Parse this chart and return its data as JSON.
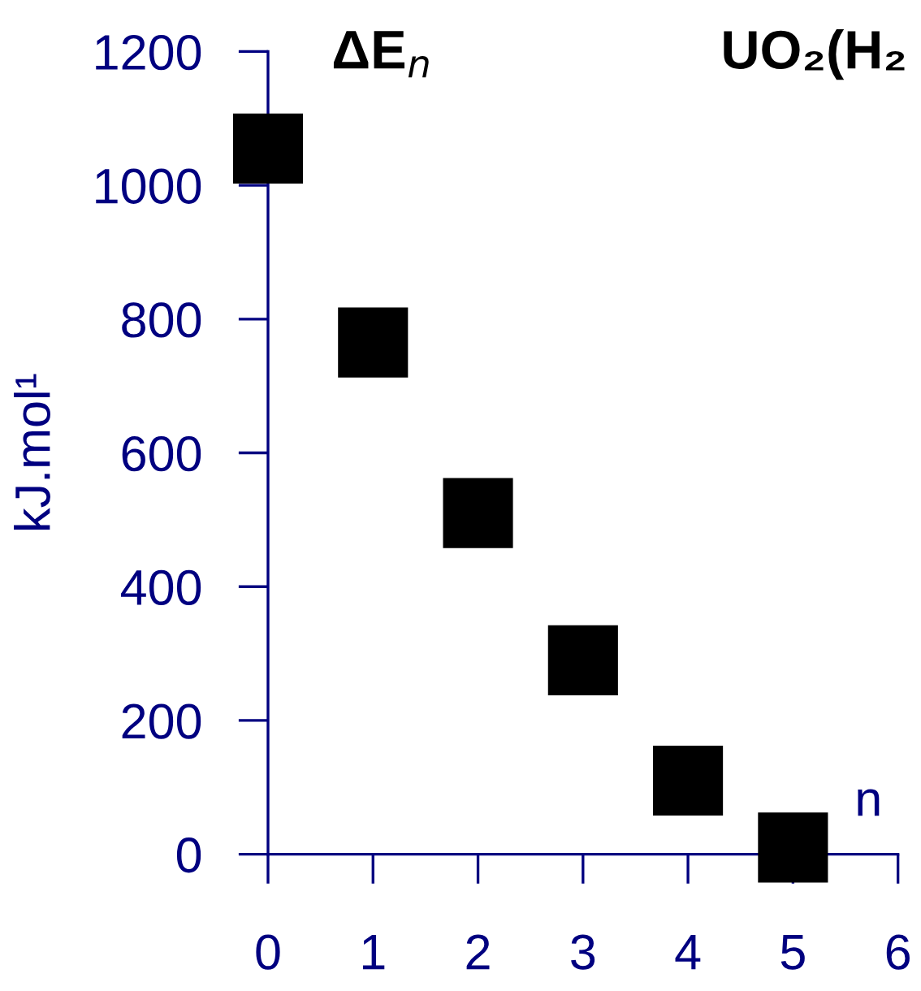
{
  "chart_data": {
    "type": "scatter",
    "title": "ΔE$_{n}$",
    "subtitle": "UO₂(H₂",
    "xlabel": "n",
    "ylabel": "kJ.mol¹",
    "x": [
      0,
      1,
      2,
      3,
      4,
      5
    ],
    "series": [
      {
        "color": "#000000",
        "values": [
          1055,
          765,
          510,
          290,
          110,
          10
        ]
      }
    ],
    "marker": "square",
    "xlim": [
      0,
      6
    ],
    "ylim": [
      0,
      1200
    ],
    "xticks": [
      0,
      1,
      2,
      3,
      4,
      5,
      6
    ],
    "yticks": [
      0,
      200,
      400,
      600,
      800,
      1000,
      1200
    ],
    "grid": false,
    "legend": false
  }
}
